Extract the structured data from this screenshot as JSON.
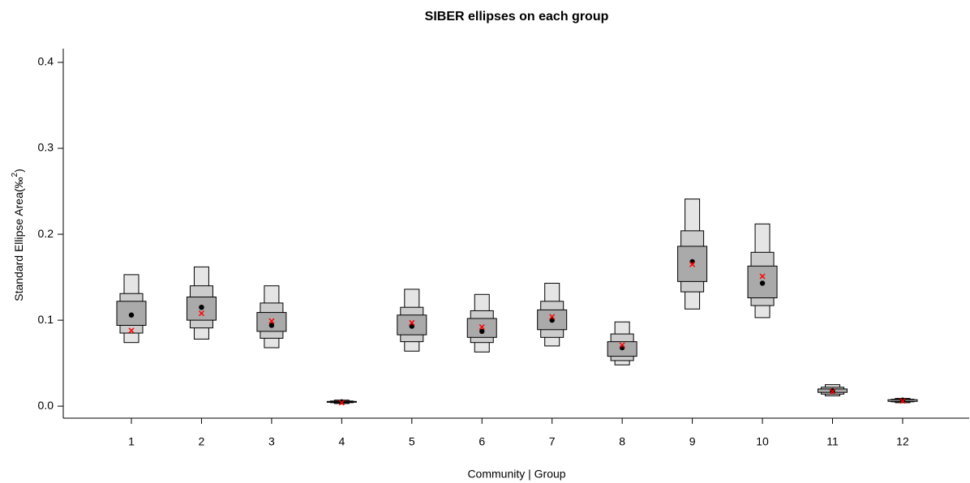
{
  "chart_data": {
    "type": "hdr-box",
    "title": "SIBER ellipses on each group",
    "x_label": "Community | Group",
    "y_label": "Standard Ellipse Area(‰",
    "y_label_sup": "2",
    "y_label_end": ")",
    "categories": [
      "1",
      "2",
      "3",
      "4",
      "5",
      "6",
      "7",
      "8",
      "9",
      "10",
      "11",
      "12"
    ],
    "ylim": [
      -0.014,
      0.416
    ],
    "yticks": [
      {
        "value": 0,
        "label": "0.0"
      },
      0.1,
      0.2,
      0.3,
      0.4
    ],
    "intervals": [
      {
        "color": "#e5e5e5",
        "low": [
          0.074,
          0.078,
          0.068,
          0.003,
          0.064,
          0.063,
          0.07,
          0.048,
          0.113,
          0.103,
          0.012,
          0.004
        ],
        "high": [
          0.153,
          0.162,
          0.14,
          0.007,
          0.136,
          0.13,
          0.143,
          0.098,
          0.241,
          0.212,
          0.025,
          0.009
        ]
      },
      {
        "color": "#cccccc",
        "low": [
          0.085,
          0.091,
          0.079,
          0.004,
          0.075,
          0.074,
          0.08,
          0.053,
          0.133,
          0.117,
          0.014,
          0.005
        ],
        "high": [
          0.131,
          0.14,
          0.12,
          0.006,
          0.115,
          0.111,
          0.122,
          0.084,
          0.204,
          0.179,
          0.022,
          0.008
        ]
      },
      {
        "color": "#aaaaaa",
        "low": [
          0.094,
          0.1,
          0.087,
          0.0045,
          0.083,
          0.08,
          0.089,
          0.058,
          0.145,
          0.126,
          0.016,
          0.0055
        ],
        "high": [
          0.122,
          0.127,
          0.109,
          0.0055,
          0.106,
          0.102,
          0.112,
          0.075,
          0.186,
          0.163,
          0.02,
          0.0075
        ]
      }
    ],
    "mode": {
      "color": "#000000",
      "values": [
        0.106,
        0.115,
        0.094,
        0.005,
        0.093,
        0.087,
        0.1,
        0.068,
        0.168,
        0.143,
        0.018,
        0.007
      ]
    },
    "ml": {
      "color": "#ff0000",
      "values": [
        0.088,
        0.108,
        0.099,
        0.004,
        0.097,
        0.092,
        0.104,
        0.071,
        0.165,
        0.151,
        0.017,
        0.006
      ]
    }
  }
}
